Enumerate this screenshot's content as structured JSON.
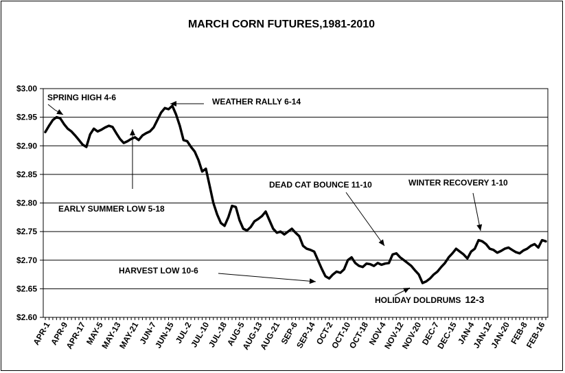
{
  "chart_data": {
    "type": "line",
    "title": "MARCH CORN FUTURES,1981-2010",
    "xlabel": "",
    "ylabel": "",
    "ylim": [
      2.6,
      3.0
    ],
    "y_ticks": [
      "$2.60",
      "$2.65",
      "$2.70",
      "$2.75",
      "$2.80",
      "$2.85",
      "$2.90",
      "$2.95",
      "$3.00"
    ],
    "grid": "horizontal",
    "x_tick_labels": [
      "APR-1",
      "APR-9",
      "APR-17",
      "MAY-5",
      "MAY-13",
      "MAY-21",
      "JUN-7",
      "JUN-15",
      "JUL-2",
      "JUL-10",
      "JUL-18",
      "AUG-5",
      "AUG-13",
      "AUG-21",
      "SEP-6",
      "SEP-14",
      "OCT-2",
      "OCT-10",
      "OCT-18",
      "NOV-4",
      "NOV-12",
      "NOV-20",
      "DEC-7",
      "DEC-15",
      "JAN-4",
      "JAN-12",
      "JAN-20",
      "FEB-8",
      "FEB-16"
    ],
    "series": [
      {
        "name": "",
        "color": "#000000",
        "values": [
          2.924,
          2.935,
          2.945,
          2.95,
          2.948,
          2.938,
          2.93,
          2.925,
          2.918,
          2.91,
          2.902,
          2.898,
          2.92,
          2.93,
          2.925,
          2.928,
          2.932,
          2.935,
          2.933,
          2.922,
          2.912,
          2.905,
          2.908,
          2.912,
          2.915,
          2.91,
          2.918,
          2.922,
          2.925,
          2.932,
          2.945,
          2.958,
          2.966,
          2.964,
          2.97,
          2.955,
          2.935,
          2.91,
          2.908,
          2.898,
          2.89,
          2.875,
          2.855,
          2.86,
          2.83,
          2.8,
          2.78,
          2.765,
          2.76,
          2.775,
          2.795,
          2.793,
          2.77,
          2.755,
          2.752,
          2.758,
          2.768,
          2.772,
          2.777,
          2.785,
          2.77,
          2.755,
          2.748,
          2.75,
          2.745,
          2.75,
          2.755,
          2.748,
          2.742,
          2.725,
          2.72,
          2.718,
          2.715,
          2.7,
          2.685,
          2.672,
          2.668,
          2.675,
          2.68,
          2.678,
          2.684,
          2.7,
          2.705,
          2.695,
          2.69,
          2.688,
          2.694,
          2.693,
          2.69,
          2.695,
          2.692,
          2.694,
          2.695,
          2.71,
          2.712,
          2.705,
          2.7,
          2.695,
          2.69,
          2.682,
          2.675,
          2.66,
          2.663,
          2.668,
          2.675,
          2.68,
          2.688,
          2.695,
          2.705,
          2.712,
          2.72,
          2.715,
          2.71,
          2.703,
          2.715,
          2.72,
          2.735,
          2.733,
          2.728,
          2.72,
          2.718,
          2.713,
          2.716,
          2.72,
          2.722,
          2.718,
          2.714,
          2.712,
          2.717,
          2.72,
          2.725,
          2.728,
          2.722,
          2.735,
          2.733
        ]
      }
    ],
    "annotations": [
      {
        "text": "SPRING HIGH 4-6",
        "size": "normal"
      },
      {
        "text": "WEATHER RALLY 6-14",
        "size": "normal"
      },
      {
        "text": "EARLY SUMMER LOW 5-18",
        "size": "normal"
      },
      {
        "text": "DEAD CAT  BOUNCE  11-10",
        "size": "normal"
      },
      {
        "text": "WINTER RECOVERY 1-10",
        "size": "normal"
      },
      {
        "text": "HARVEST LOW  10-6",
        "size": "normal"
      },
      {
        "text": "HOLIDAY DOLDRUMS",
        "size": "normal",
        "suffix": "12-3"
      }
    ]
  }
}
